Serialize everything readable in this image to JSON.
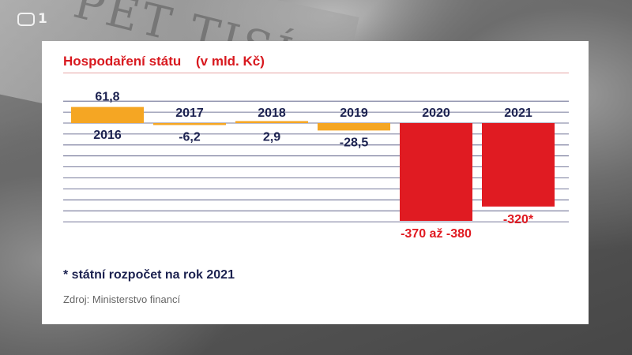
{
  "channel_logo": "ČT1 logo",
  "channel_number": "1",
  "background_text": "PĚT TISÍC",
  "header": {
    "title": "Hospodaření státu",
    "unit": "(v mld. Kč)"
  },
  "footnote": "* státní rozpočet na rok 2021",
  "source": "Zdroj: Ministerstvo financí",
  "colors": {
    "positive": "#f5a623",
    "negative_big": "#e01b22",
    "text_navy": "#1c2250",
    "label_red": "#e01b22"
  },
  "chart_data": {
    "type": "bar",
    "title": "Hospodaření státu",
    "ylabel": "(v mld. Kč)",
    "categories": [
      "2016",
      "2017",
      "2018",
      "2019",
      "2020",
      "2021"
    ],
    "values": [
      61.8,
      -6.2,
      2.9,
      -28.5,
      -375,
      -320
    ],
    "value_labels": [
      "61,8",
      "-6,2",
      "2,9",
      "-28,5",
      "-370 až -380",
      "-320*"
    ],
    "ylim": [
      -380,
      62
    ],
    "grid": true,
    "legend": "none"
  }
}
